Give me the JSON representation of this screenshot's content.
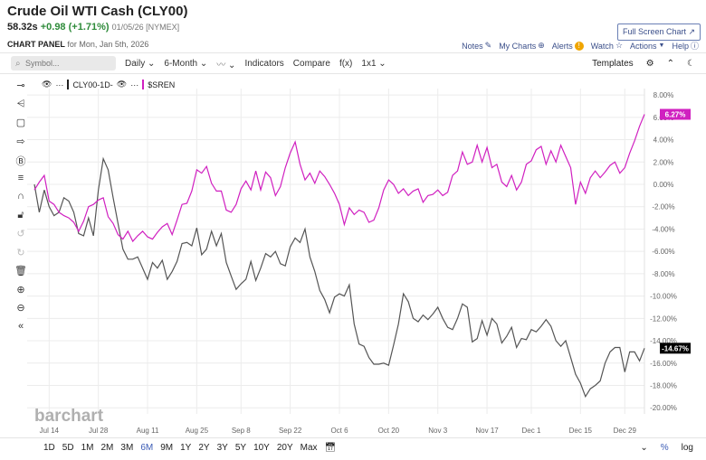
{
  "header": {
    "title": "Crude Oil WTI Cash (CLY00)",
    "price": "58.32s",
    "change": "+0.98 (+1.71%)",
    "date": "01/05/26 [NYMEX]",
    "panel_label": "CHART PANEL",
    "panel_date": "for Mon, Jan 5th, 2026",
    "fullscreen": "Full Screen Chart"
  },
  "toplinks": [
    {
      "label": "Notes",
      "icon": "edit-icon"
    },
    {
      "label": "My Charts",
      "icon": "plus-circle-icon"
    },
    {
      "label": "Alerts",
      "icon": "alert-icon"
    },
    {
      "label": "Watch",
      "icon": "star-icon"
    },
    {
      "label": "Actions",
      "icon": "caret-down-icon"
    },
    {
      "label": "Help",
      "icon": "help-icon"
    }
  ],
  "toolbar": {
    "symbol_placeholder": "Symbol...",
    "items": [
      "Daily",
      "6-Month",
      "Indicators",
      "Compare",
      "f(x)",
      "1x1"
    ],
    "templates": "Templates"
  },
  "legend": {
    "series1": "CLY00-1D-",
    "series2": "$SREN"
  },
  "colors": {
    "cly00": "#555555",
    "sren": "#d020c0",
    "accent": "#3b5bb5"
  },
  "watermark": "barchart",
  "ranges": [
    "1D",
    "5D",
    "1M",
    "2M",
    "3M",
    "6M",
    "9M",
    "1Y",
    "2Y",
    "3Y",
    "5Y",
    "10Y",
    "20Y",
    "Max"
  ],
  "selected_range": "6M",
  "bottom_right": {
    "percent": "%",
    "log": "log"
  },
  "chart_data": {
    "type": "line",
    "yunit": "%",
    "ylim": [
      -20,
      8
    ],
    "yticks": [
      "8.00%",
      "6.00%",
      "4.00%",
      "2.00%",
      "0.00%",
      "-2.00%",
      "-4.00%",
      "-6.00%",
      "-8.00%",
      "-10.00%",
      "-12.00%",
      "-14.00%",
      "-16.00%",
      "-18.00%",
      "-20.00%"
    ],
    "xticks": [
      "Jul 14",
      "Jul 28",
      "Aug 11",
      "Aug 25",
      "Sep 8",
      "Sep 22",
      "Oct 6",
      "Oct 20",
      "Nov 3",
      "Nov 17",
      "Dec 1",
      "Dec 15",
      "Dec 29"
    ],
    "grid": true,
    "x": [
      "Jul 9",
      "Jul 10",
      "Jul 11",
      "Jul 14",
      "Jul 15",
      "Jul 16",
      "Jul 17",
      "Jul 18",
      "Jul 21",
      "Jul 22",
      "Jul 23",
      "Jul 24",
      "Jul 25",
      "Jul 28",
      "Jul 29",
      "Jul 30",
      "Jul 31",
      "Aug 1",
      "Aug 4",
      "Aug 5",
      "Aug 6",
      "Aug 7",
      "Aug 8",
      "Aug 11",
      "Aug 12",
      "Aug 13",
      "Aug 14",
      "Aug 15",
      "Aug 18",
      "Aug 19",
      "Aug 20",
      "Aug 21",
      "Aug 22",
      "Aug 25",
      "Aug 26",
      "Aug 27",
      "Aug 28",
      "Aug 29",
      "Sep 2",
      "Sep 3",
      "Sep 4",
      "Sep 5",
      "Sep 8",
      "Sep 9",
      "Sep 10",
      "Sep 11",
      "Sep 12",
      "Sep 15",
      "Sep 16",
      "Sep 17",
      "Sep 18",
      "Sep 19",
      "Sep 22",
      "Sep 23",
      "Sep 24",
      "Sep 25",
      "Sep 26",
      "Sep 29",
      "Sep 30",
      "Oct 1",
      "Oct 2",
      "Oct 3",
      "Oct 6",
      "Oct 7",
      "Oct 8",
      "Oct 9",
      "Oct 10",
      "Oct 13",
      "Oct 14",
      "Oct 15",
      "Oct 16",
      "Oct 17",
      "Oct 20",
      "Oct 21",
      "Oct 22",
      "Oct 23",
      "Oct 24",
      "Oct 27",
      "Oct 28",
      "Oct 29",
      "Oct 30",
      "Oct 31",
      "Nov 3",
      "Nov 4",
      "Nov 5",
      "Nov 6",
      "Nov 7",
      "Nov 10",
      "Nov 11",
      "Nov 12",
      "Nov 13",
      "Nov 14",
      "Nov 17",
      "Nov 18",
      "Nov 19",
      "Nov 20",
      "Nov 21",
      "Nov 24",
      "Nov 25",
      "Nov 26",
      "Nov 28",
      "Dec 1",
      "Dec 2",
      "Dec 3",
      "Dec 4",
      "Dec 5",
      "Dec 8",
      "Dec 9",
      "Dec 10",
      "Dec 11",
      "Dec 12",
      "Dec 15",
      "Dec 16",
      "Dec 17",
      "Dec 18",
      "Dec 19",
      "Dec 22",
      "Dec 23",
      "Dec 24",
      "Dec 26",
      "Dec 29",
      "Dec 30",
      "Dec 31",
      "Jan 2",
      "Jan 5"
    ],
    "series": [
      {
        "name": "CLY00-1D-",
        "last_label": "-14.67%",
        "values": [
          0,
          -2.5,
          -0.5,
          -2.0,
          -2.8,
          -2.5,
          -1.2,
          -1.5,
          -2.5,
          -4.4,
          -4.6,
          -3.0,
          -4.6,
          -0.5,
          2.3,
          1.3,
          -1.2,
          -3.5,
          -5.8,
          -6.7,
          -6.7,
          -6.5,
          -7.5,
          -8.5,
          -7.0,
          -7.5,
          -6.8,
          -8.5,
          -7.8,
          -6.9,
          -5.3,
          -5.2,
          -5.5,
          -3.9,
          -6.3,
          -5.8,
          -4.2,
          -5.5,
          -4.4,
          -7.0,
          -8.2,
          -9.4,
          -8.9,
          -8.5,
          -6.9,
          -8.6,
          -7.5,
          -6.2,
          -6.5,
          -6.0,
          -7.1,
          -7.3,
          -5.6,
          -4.8,
          -5.2,
          -4.0,
          -6.5,
          -7.8,
          -9.5,
          -10.3,
          -11.5,
          -10.1,
          -9.8,
          -10.0,
          -9.0,
          -12.5,
          -14.3,
          -14.5,
          -15.5,
          -16.1,
          -16.1,
          -16.0,
          -16.2,
          -14.4,
          -12.5,
          -9.8,
          -10.5,
          -12.0,
          -12.3,
          -11.7,
          -12.1,
          -11.6,
          -11.0,
          -12.0,
          -12.8,
          -13.0,
          -12.0,
          -10.7,
          -11.0,
          -14.1,
          -13.8,
          -12.2,
          -13.5,
          -12.0,
          -12.5,
          -14.2,
          -13.6,
          -12.8,
          -14.6,
          -13.8,
          -13.9,
          -13.0,
          -13.2,
          -12.7,
          -12.1,
          -12.7,
          -14.0,
          -14.5,
          -14.0,
          -15.5,
          -17.0,
          -17.8,
          -19.0,
          -18.3,
          -18.0,
          -17.6,
          -16.0,
          -15.0,
          -14.6,
          -14.6,
          -16.8,
          -15.0,
          -15.0,
          -15.8,
          -14.67
        ]
      },
      {
        "name": "$SREN",
        "last_label": "6.27%",
        "values": [
          -0.5,
          0.2,
          0.8,
          -1.5,
          -1.8,
          -2.5,
          -2.8,
          -3.0,
          -3.4,
          -4.2,
          -3.3,
          -2.0,
          -1.8,
          -1.4,
          -1.2,
          -2.9,
          -3.5,
          -4.5,
          -4.9,
          -4.2,
          -5.1,
          -4.6,
          -4.2,
          -4.7,
          -4.9,
          -4.3,
          -3.8,
          -3.5,
          -4.5,
          -3.2,
          -1.8,
          -1.7,
          -0.6,
          1.3,
          1.0,
          1.6,
          0.1,
          -0.6,
          -0.6,
          -2.3,
          -2.5,
          -1.8,
          -0.4,
          0.3,
          -0.5,
          1.2,
          -0.5,
          1.1,
          0.6,
          -1.0,
          -0.2,
          1.5,
          2.8,
          3.8,
          1.8,
          0.4,
          1.0,
          0.1,
          1.2,
          0.7,
          0.0,
          -0.8,
          -1.8,
          -3.6,
          -2.1,
          -2.7,
          -2.3,
          -2.5,
          -3.4,
          -3.2,
          -2.1,
          -0.5,
          0.4,
          0.0,
          -0.8,
          -0.4,
          -1.0,
          -0.6,
          -0.4,
          -1.6,
          -1.0,
          -0.9,
          -0.5,
          -1.0,
          -0.7,
          0.8,
          1.2,
          2.9,
          1.8,
          2.0,
          3.5,
          2.0,
          3.3,
          1.5,
          1.8,
          0.2,
          -0.2,
          0.8,
          -0.5,
          0.2,
          1.8,
          2.1,
          3.1,
          3.4,
          1.8,
          3.0,
          2.0,
          3.5,
          2.5,
          1.5,
          -1.8,
          0.2,
          -0.8,
          0.6,
          1.2,
          0.6,
          1.1,
          1.7,
          2.0,
          1.0,
          1.5,
          2.8,
          3.9,
          5.2,
          6.27
        ]
      }
    ]
  }
}
